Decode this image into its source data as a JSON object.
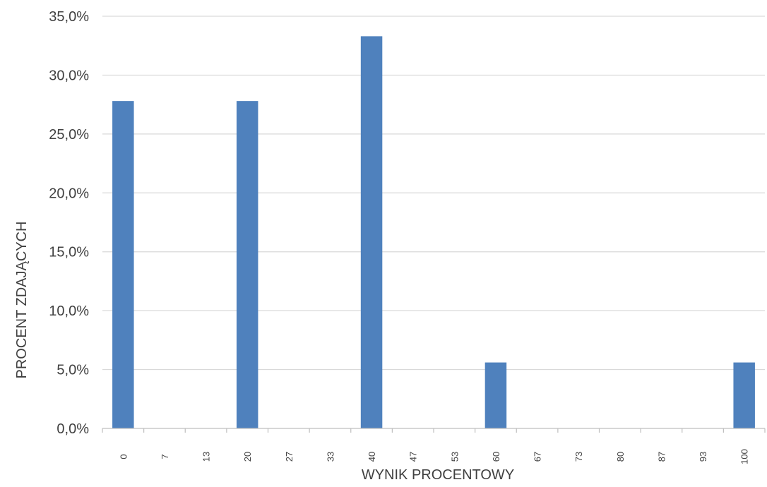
{
  "chart_data": {
    "type": "bar",
    "categories": [
      "0",
      "7",
      "13",
      "20",
      "27",
      "33",
      "40",
      "47",
      "53",
      "60",
      "67",
      "73",
      "80",
      "87",
      "93",
      "100"
    ],
    "series": [
      {
        "values": [
          27.8,
          0,
          0,
          27.8,
          0,
          0,
          33.3,
          0,
          0,
          5.6,
          0,
          0,
          0,
          0,
          0,
          5.6
        ]
      }
    ],
    "xlabel": "WYNIK PROCENTOWY",
    "ylabel": "PROCENT ZDAJĄCYCH",
    "ylim": [
      0,
      35
    ],
    "yticks": [
      "0,0%",
      "5,0%",
      "10,0%",
      "15,0%",
      "20,0%",
      "25,0%",
      "30,0%",
      "35,0%"
    ],
    "grid": true,
    "legend": "none",
    "colors": {
      "bar": "#4f81bd",
      "grid": "#d9d9d9",
      "axis": "#bfbfbf",
      "text": "#404040"
    }
  }
}
